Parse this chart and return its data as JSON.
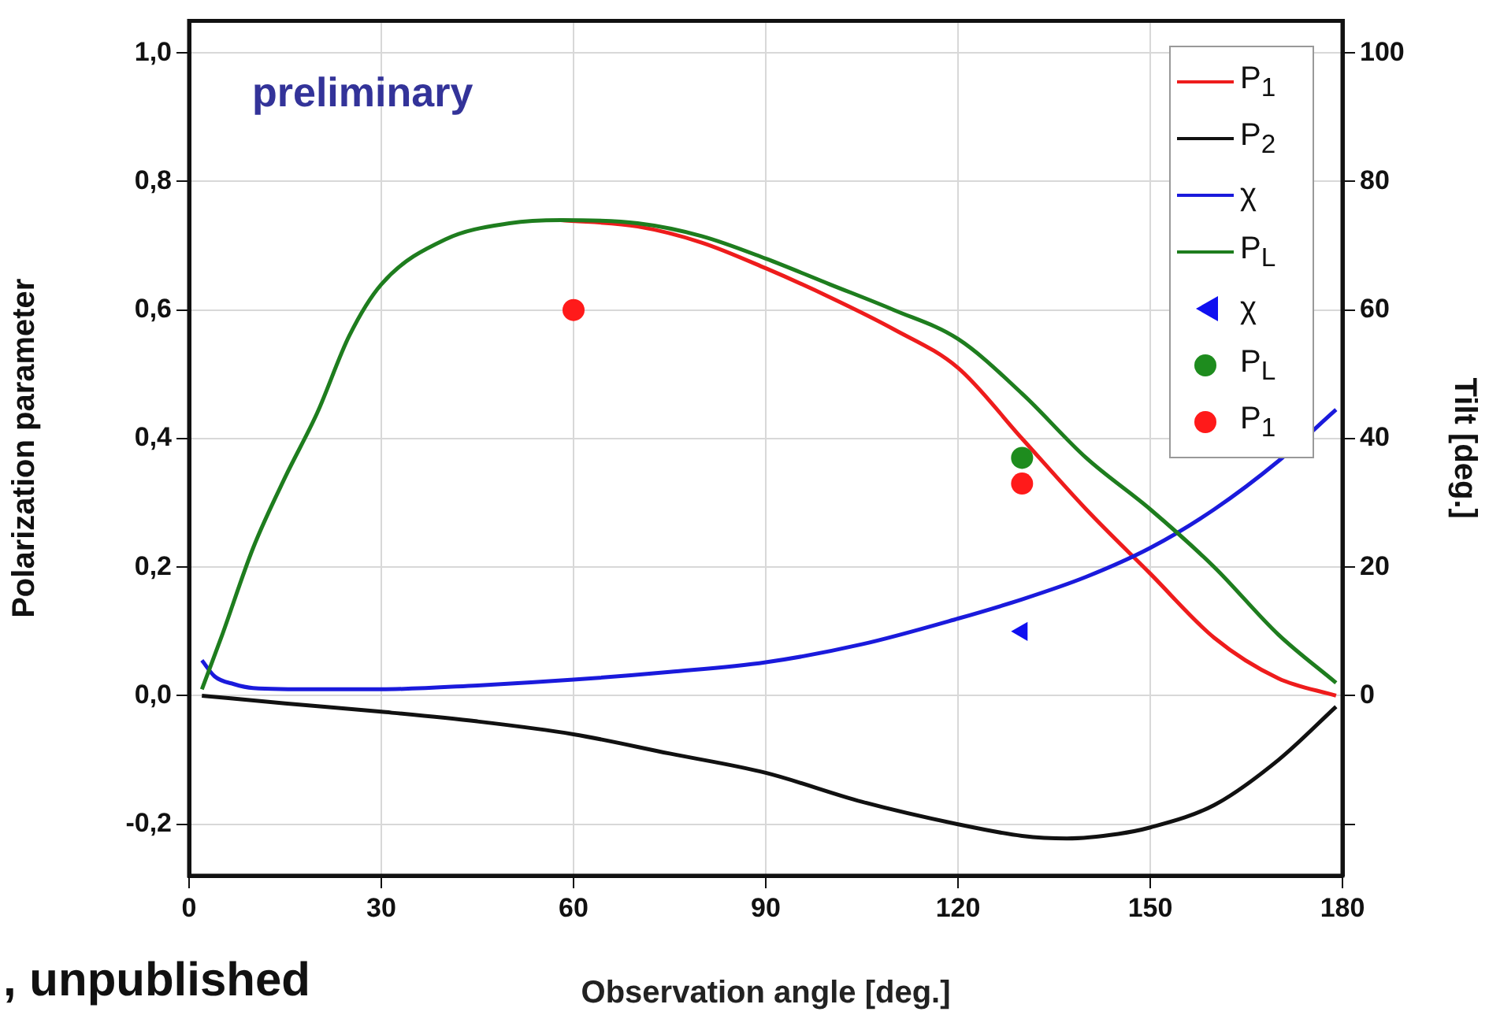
{
  "chart_data": {
    "type": "line",
    "xlabel": "Observation angle [deg.]",
    "ylabel": "Polarization parameter",
    "y2label": "Tilt [deg.]",
    "xlim": [
      0,
      180
    ],
    "xticks": [
      0,
      30,
      60,
      90,
      120,
      150,
      180
    ],
    "ylim": [
      -0.28,
      1.05
    ],
    "yticks": [
      {
        "value": -0.2,
        "label": "-0,2"
      },
      {
        "value": 0,
        "label": "0,0"
      },
      {
        "value": 0.2,
        "label": "0,2"
      },
      {
        "value": 0.4,
        "label": "0,4"
      },
      {
        "value": 0.6,
        "label": "0,6"
      },
      {
        "value": 0.8,
        "label": "0,8"
      },
      {
        "value": 1,
        "label": "1,0"
      }
    ],
    "y2lim": [
      -28,
      105
    ],
    "y2ticks": [
      {
        "value": -20,
        "label": null
      },
      0,
      20,
      40,
      60,
      80,
      100
    ],
    "grid": true,
    "legend": "top right",
    "annotations": [
      "preliminary",
      ", unpublished"
    ],
    "series": [
      {
        "name": "P$_{1}$",
        "color": "#ee1c1c",
        "marker": "none",
        "x": [
          58,
          70,
          80,
          90,
          100,
          110,
          120,
          130,
          140,
          150,
          160,
          170,
          179
        ],
        "values": [
          0.74,
          0.73,
          0.705,
          0.665,
          0.62,
          0.57,
          0.51,
          0.4,
          0.29,
          0.19,
          0.09,
          0.027,
          0
        ]
      },
      {
        "name": "P$_{2}$",
        "color": "#111111",
        "marker": "none",
        "x": [
          2,
          15,
          30,
          45,
          60,
          75,
          90,
          105,
          120,
          130,
          137,
          145,
          150,
          160,
          170,
          179
        ],
        "values": [
          0,
          -0.012,
          -0.025,
          -0.04,
          -0.06,
          -0.09,
          -0.12,
          -0.165,
          -0.2,
          -0.218,
          -0.222,
          -0.215,
          -0.205,
          -0.17,
          -0.1,
          -0.017
        ]
      },
      {
        "name": "χ",
        "color": "#1a1adc",
        "marker": "none",
        "axis": "y2",
        "x": [
          2,
          4,
          7,
          10,
          20,
          30,
          45,
          60,
          75,
          90,
          105,
          120,
          130,
          140,
          150,
          160,
          170,
          179
        ],
        "values": [
          5.5,
          3,
          1.8,
          1.2,
          1,
          1,
          1.6,
          2.5,
          3.7,
          5.2,
          8,
          12,
          15,
          18.5,
          23,
          29,
          36.5,
          44.5
        ]
      },
      {
        "name": "P$_{L}$",
        "color": "#1e7d1e",
        "marker": "none",
        "x": [
          2,
          5,
          10,
          15,
          20,
          25,
          30,
          40,
          50,
          58,
          70,
          80,
          90,
          100,
          110,
          120,
          130,
          140,
          150,
          160,
          170,
          179
        ],
        "values": [
          0.01,
          0.09,
          0.23,
          0.34,
          0.44,
          0.56,
          0.64,
          0.71,
          0.735,
          0.74,
          0.735,
          0.715,
          0.68,
          0.64,
          0.6,
          0.555,
          0.47,
          0.37,
          0.29,
          0.2,
          0.095,
          0.02
        ]
      },
      {
        "name": "χ",
        "color": "#1010f0",
        "type": "scatter",
        "marker": "triangle",
        "axis": "y2",
        "x": [
          130
        ],
        "values": [
          10
        ]
      },
      {
        "name": "P$_{L}$",
        "color": "#1e8c1e",
        "type": "scatter",
        "marker": "circle",
        "x": [
          130
        ],
        "values": [
          0.37
        ]
      },
      {
        "name": "P$_{1}$",
        "color": "#ff1a1a",
        "type": "scatter",
        "marker": "circle",
        "x": [
          60,
          130
        ],
        "values": [
          0.6,
          0.33
        ]
      }
    ]
  }
}
